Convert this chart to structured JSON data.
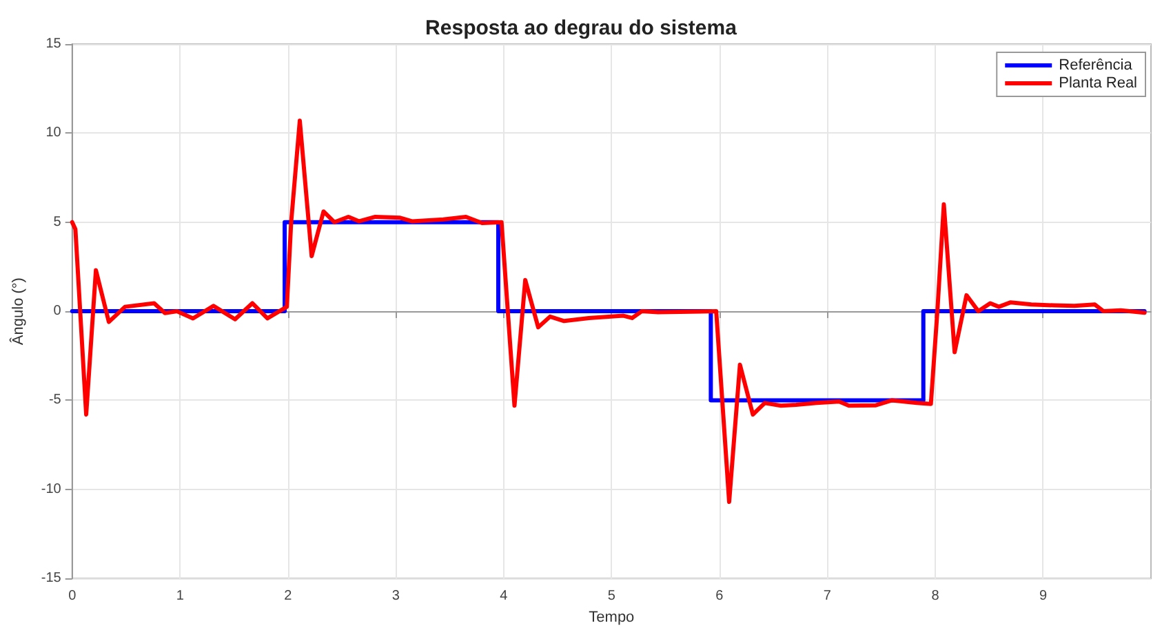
{
  "chart_data": {
    "type": "line",
    "title": "Resposta ao degrau do sistema",
    "xlabel": "Tempo",
    "ylabel": "Ângulo (°)",
    "xlim": [
      0,
      10
    ],
    "xticks": [
      0,
      1,
      2,
      3,
      4,
      5,
      6,
      7,
      8,
      9
    ],
    "ylim": [
      -15,
      15
    ],
    "yticks": [
      -15,
      -10,
      -5,
      0,
      5,
      10,
      15
    ],
    "grid": true,
    "legend": "top right",
    "marker": "none",
    "line_style": "solid",
    "series": [
      {
        "name": "Referência",
        "color": "#0000ff",
        "x": [
          0,
          1.97,
          1.97,
          3.95,
          3.95,
          5.92,
          5.92,
          7.89,
          7.89,
          9.94
        ],
        "values": [
          0,
          0,
          5,
          5,
          0,
          0,
          -5,
          -5,
          0,
          0
        ]
      },
      {
        "name": "Planta Real",
        "color": "#ff0000",
        "x": [
          0.0,
          0.03,
          0.13,
          0.22,
          0.34,
          0.49,
          0.76,
          0.86,
          0.97,
          1.12,
          1.31,
          1.51,
          1.67,
          1.81,
          1.99,
          2.03,
          2.11,
          2.22,
          2.33,
          2.43,
          2.56,
          2.66,
          2.81,
          3.04,
          3.15,
          3.44,
          3.65,
          3.8,
          3.98,
          4.1,
          4.2,
          4.32,
          4.43,
          4.56,
          4.79,
          5.11,
          5.19,
          5.28,
          5.43,
          5.97,
          6.09,
          6.19,
          6.31,
          6.42,
          6.57,
          6.71,
          6.9,
          7.11,
          7.2,
          7.45,
          7.6,
          7.83,
          7.96,
          8.02,
          8.08,
          8.18,
          8.29,
          8.4,
          8.51,
          8.59,
          8.7,
          8.89,
          9.1,
          9.29,
          9.48,
          9.56,
          9.72,
          9.94
        ],
        "values": [
          5.0,
          4.6,
          -5.8,
          2.3,
          -0.6,
          0.25,
          0.45,
          -0.1,
          0,
          -0.4,
          0.3,
          -0.45,
          0.45,
          -0.4,
          0.25,
          5.0,
          10.7,
          3.1,
          5.6,
          5.0,
          5.3,
          5.05,
          5.3,
          5.25,
          5.05,
          5.15,
          5.3,
          4.95,
          5.0,
          -5.3,
          1.75,
          -0.9,
          -0.3,
          -0.55,
          -0.38,
          -0.25,
          -0.38,
          0,
          -0.05,
          0,
          -10.7,
          -3.0,
          -5.8,
          -5.15,
          -5.3,
          -5.25,
          -5.15,
          -5.07,
          -5.3,
          -5.28,
          -5.0,
          -5.15,
          -5.2,
          0,
          6.0,
          -2.3,
          0.9,
          0,
          0.45,
          0.25,
          0.5,
          0.38,
          0.33,
          0.3,
          0.38,
          0,
          0.05,
          -0.08
        ]
      }
    ]
  }
}
